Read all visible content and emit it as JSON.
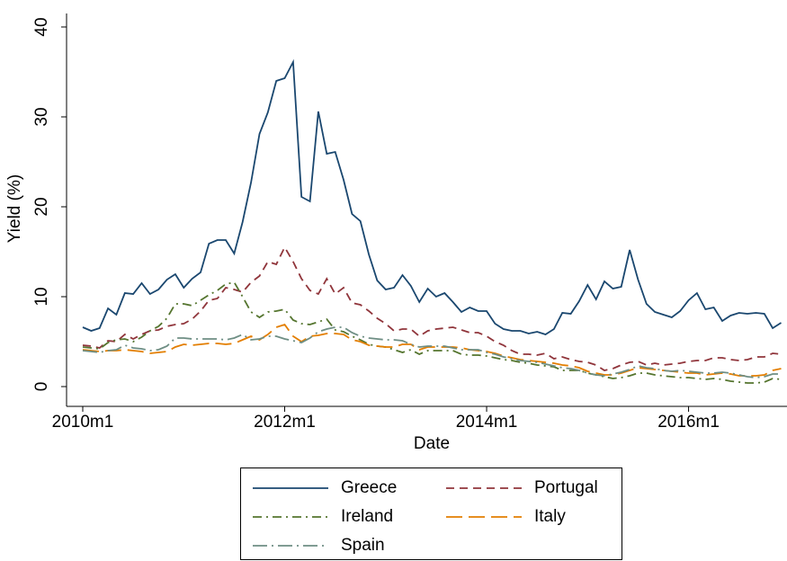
{
  "chart_data": {
    "type": "line",
    "x_label": "Date",
    "y_label": "Yield (%)",
    "categories": [
      "2010m1",
      null,
      null,
      null,
      null,
      null,
      null,
      null,
      null,
      null,
      null,
      null,
      null,
      null,
      null,
      null,
      null,
      null,
      null,
      null,
      null,
      null,
      null,
      null,
      "2012m1",
      null,
      null,
      null,
      null,
      null,
      null,
      null,
      null,
      null,
      null,
      null,
      null,
      null,
      null,
      null,
      null,
      null,
      null,
      null,
      null,
      null,
      null,
      null,
      "2014m1",
      null,
      null,
      null,
      null,
      null,
      null,
      null,
      null,
      null,
      null,
      null,
      null,
      null,
      null,
      null,
      null,
      null,
      null,
      null,
      null,
      null,
      null,
      null,
      "2016m1",
      null,
      null,
      null,
      null,
      null,
      null,
      null,
      null,
      null,
      null,
      null
    ],
    "ylim": [
      -2.2,
      41.5
    ],
    "yticks": [
      0,
      10,
      20,
      30,
      40
    ],
    "grid": false,
    "series": [
      {
        "name": "Greece",
        "color": "#1a476f",
        "values": [
          6.6,
          6.2,
          6.5,
          8.7,
          8.0,
          10.4,
          10.3,
          11.5,
          10.3,
          10.8,
          11.9,
          12.5,
          11.0,
          12.0,
          12.7,
          15.9,
          16.3,
          16.3,
          14.8,
          18.3,
          22.7,
          28.1,
          30.5,
          34.0,
          34.3,
          36.1,
          21.1,
          20.6,
          30.6,
          25.9,
          26.1,
          23.0,
          19.2,
          18.4,
          14.7,
          11.8,
          10.8,
          11.0,
          12.4,
          11.2,
          9.4,
          10.9,
          10.0,
          10.4,
          9.4,
          8.3,
          8.8,
          8.4,
          8.4,
          7.0,
          6.4,
          6.2,
          6.2,
          5.9,
          6.1,
          5.8,
          6.4,
          8.2,
          8.1,
          9.5,
          11.3,
          9.7,
          11.7,
          10.9,
          11.1,
          15.2,
          11.9,
          9.2,
          8.3,
          8.0,
          7.7,
          8.4,
          9.6,
          10.4,
          8.6,
          8.8,
          7.3,
          7.9,
          8.2,
          8.1,
          8.2,
          8.1,
          6.5,
          7.1
        ]
      },
      {
        "name": "Portugal",
        "color": "#90353b",
        "values": [
          4.6,
          4.5,
          4.3,
          5.1,
          5.0,
          5.8,
          5.3,
          5.8,
          6.2,
          6.3,
          6.7,
          6.9,
          7.0,
          7.5,
          8.4,
          9.6,
          9.8,
          11.0,
          10.8,
          10.5,
          11.6,
          12.3,
          13.9,
          13.6,
          15.5,
          13.9,
          12.0,
          10.7,
          10.3,
          12.0,
          10.3,
          11.0,
          9.3,
          9.1,
          8.4,
          7.6,
          7.0,
          6.2,
          6.4,
          6.4,
          5.6,
          6.2,
          6.4,
          6.5,
          6.6,
          6.3,
          6.0,
          6.0,
          5.6,
          5.0,
          4.6,
          4.0,
          3.6,
          3.6,
          3.5,
          3.7,
          3.1,
          3.3,
          3.0,
          2.8,
          2.7,
          2.4,
          1.8,
          2.0,
          2.4,
          2.7,
          2.8,
          2.4,
          2.6,
          2.4,
          2.5,
          2.6,
          2.8,
          2.9,
          2.9,
          3.2,
          3.2,
          3.0,
          2.9,
          3.0,
          3.3,
          3.3,
          3.7,
          3.6
        ]
      },
      {
        "name": "Ireland",
        "color": "#55752f",
        "values": [
          4.4,
          4.3,
          4.2,
          4.9,
          5.2,
          5.3,
          5.0,
          5.5,
          6.2,
          6.7,
          7.6,
          9.2,
          9.2,
          9.0,
          9.6,
          10.2,
          10.7,
          11.4,
          11.6,
          10.0,
          8.3,
          7.7,
          8.3,
          8.4,
          8.6,
          7.4,
          7.0,
          6.9,
          7.2,
          7.5,
          6.3,
          6.1,
          5.6,
          5.2,
          4.7,
          4.5,
          4.4,
          4.1,
          3.8,
          4.1,
          3.6,
          4.0,
          4.0,
          4.0,
          4.0,
          3.6,
          3.5,
          3.5,
          3.4,
          3.2,
          3.0,
          2.9,
          2.7,
          2.6,
          2.4,
          2.3,
          2.2,
          1.8,
          1.8,
          1.8,
          1.5,
          1.3,
          1.1,
          0.9,
          1.0,
          1.2,
          1.5,
          1.5,
          1.3,
          1.2,
          1.1,
          1.0,
          1.0,
          0.9,
          0.8,
          0.9,
          0.8,
          0.6,
          0.5,
          0.4,
          0.4,
          0.5,
          0.9,
          0.8
        ]
      },
      {
        "name": "Italy",
        "color": "#e37e00",
        "values": [
          4.1,
          4.0,
          3.9,
          4.0,
          4.0,
          4.1,
          4.0,
          3.9,
          3.7,
          3.8,
          3.9,
          4.4,
          4.7,
          4.6,
          4.7,
          4.8,
          4.8,
          4.7,
          4.8,
          5.2,
          5.6,
          5.2,
          5.8,
          6.6,
          6.9,
          5.6,
          5.0,
          5.6,
          5.7,
          5.9,
          5.9,
          5.8,
          5.2,
          5.0,
          4.6,
          4.5,
          4.4,
          4.4,
          4.7,
          4.7,
          4.1,
          4.4,
          4.4,
          4.4,
          4.4,
          4.3,
          4.1,
          4.0,
          3.9,
          3.7,
          3.4,
          3.2,
          3.0,
          2.9,
          2.8,
          2.7,
          2.6,
          2.4,
          2.3,
          2.1,
          1.7,
          1.5,
          1.3,
          1.3,
          1.5,
          1.8,
          2.1,
          2.0,
          1.9,
          1.8,
          1.7,
          1.6,
          1.5,
          1.5,
          1.3,
          1.4,
          1.5,
          1.4,
          1.2,
          1.2,
          1.2,
          1.3,
          1.8,
          2.0
        ]
      },
      {
        "name": "Spain",
        "color": "#6e8e84",
        "values": [
          4.0,
          3.9,
          3.8,
          4.0,
          4.1,
          4.6,
          4.3,
          4.2,
          4.0,
          4.1,
          4.5,
          5.4,
          5.4,
          5.3,
          5.3,
          5.3,
          5.3,
          5.2,
          5.4,
          5.8,
          5.2,
          5.3,
          5.6,
          5.6,
          5.3,
          5.1,
          4.9,
          5.4,
          6.1,
          6.4,
          6.6,
          6.6,
          6.0,
          5.6,
          5.4,
          5.3,
          5.2,
          5.2,
          5.1,
          4.7,
          4.4,
          4.5,
          4.5,
          4.5,
          4.3,
          4.1,
          4.1,
          4.1,
          3.8,
          3.6,
          3.3,
          3.1,
          2.9,
          2.8,
          2.7,
          2.5,
          2.3,
          2.1,
          2.0,
          1.8,
          1.5,
          1.3,
          1.2,
          1.4,
          1.6,
          1.9,
          2.3,
          2.1,
          2.0,
          1.8,
          1.7,
          1.8,
          1.7,
          1.6,
          1.5,
          1.5,
          1.6,
          1.5,
          1.3,
          1.1,
          1.0,
          1.1,
          1.4,
          1.4
        ]
      }
    ]
  }
}
